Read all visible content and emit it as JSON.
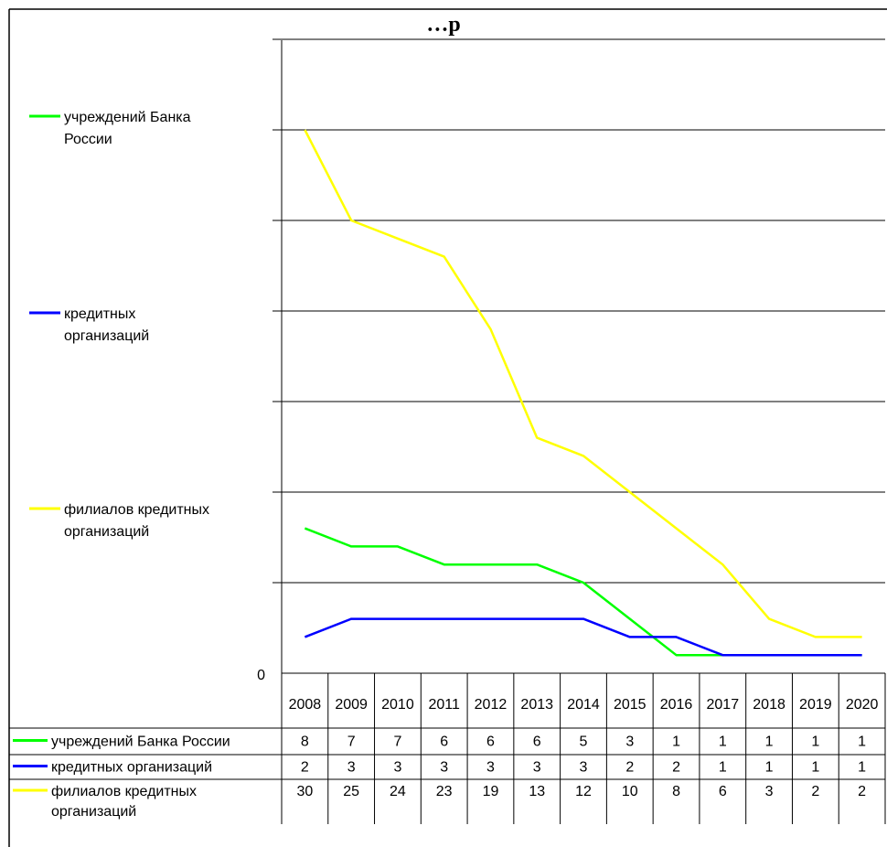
{
  "chart_data": {
    "type": "line",
    "title": "…р",
    "categories": [
      "2008",
      "2009",
      "2010",
      "2011",
      "2012",
      "2013",
      "2014",
      "2015",
      "2016",
      "2017",
      "2018",
      "2019",
      "2020"
    ],
    "ylim": [
      0,
      30
    ],
    "y_tick_labels": [
      "0"
    ],
    "grid": true,
    "legend_position": "left",
    "series": [
      {
        "name": "учреждений Банка России",
        "legend_label": "учреждений Банка\nРоссии",
        "table_label": "учреждений Банка России",
        "color": "#00FF00",
        "values": [
          8,
          7,
          7,
          6,
          6,
          6,
          5,
          3,
          1,
          1,
          1,
          1,
          1
        ]
      },
      {
        "name": "кредитных организаций",
        "legend_label": "кредитных\nорганизаций",
        "table_label": "кредитных организаций",
        "color": "#0000FF",
        "values": [
          2,
          3,
          3,
          3,
          3,
          3,
          3,
          2,
          2,
          1,
          1,
          1,
          1
        ]
      },
      {
        "name": "филиалов кредитных организаций",
        "legend_label": "филиалов кредитных\nорганизаций",
        "table_label": "филиалов кредитных\nорганизаций",
        "color": "#FFFF00",
        "values": [
          30,
          25,
          24,
          23,
          19,
          13,
          12,
          10,
          8,
          6,
          3,
          2,
          2
        ]
      }
    ]
  }
}
